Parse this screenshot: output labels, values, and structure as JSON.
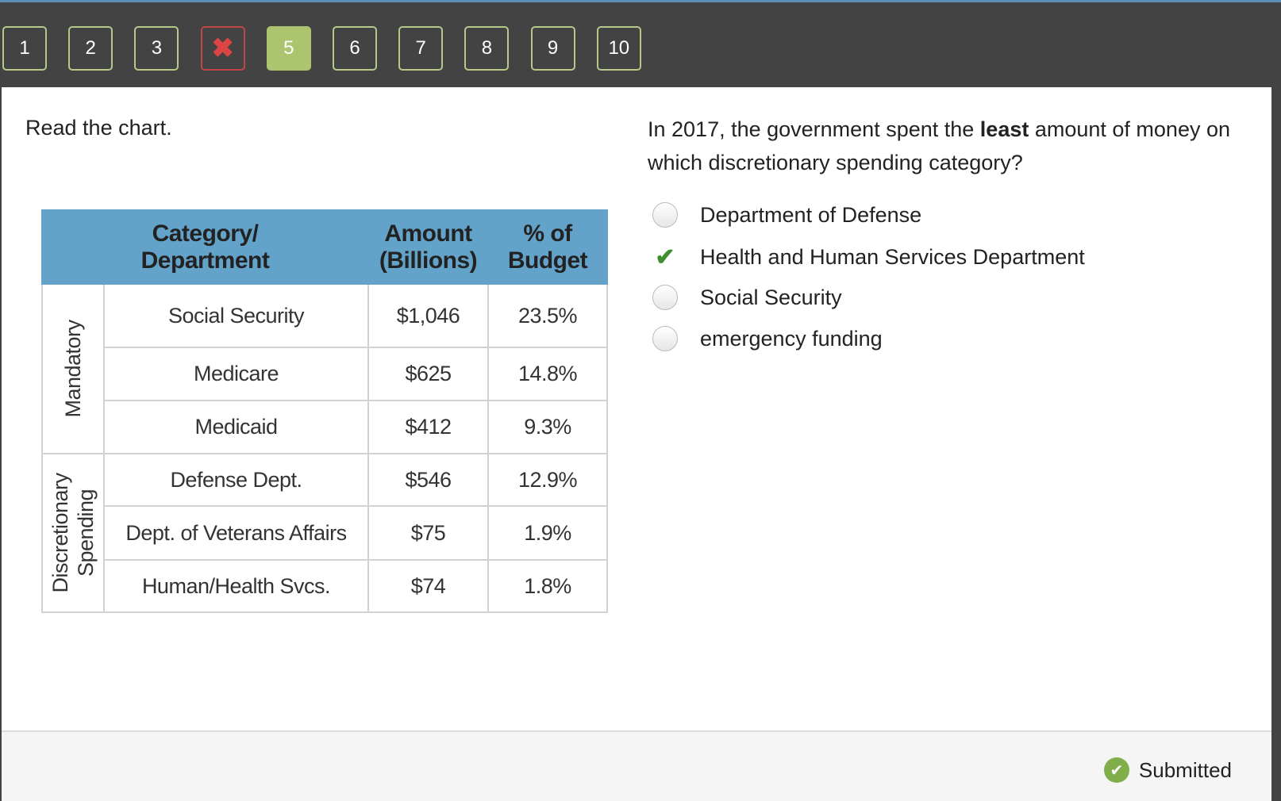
{
  "nav": {
    "questions": [
      {
        "label": "1",
        "state": "answered"
      },
      {
        "label": "2",
        "state": "answered"
      },
      {
        "label": "3",
        "state": "answered"
      },
      {
        "label": "✖",
        "state": "wrong"
      },
      {
        "label": "5",
        "state": "current"
      },
      {
        "label": "6",
        "state": "answered"
      },
      {
        "label": "7",
        "state": "answered"
      },
      {
        "label": "8",
        "state": "answered"
      },
      {
        "label": "9",
        "state": "answered"
      },
      {
        "label": "10",
        "state": "answered"
      }
    ]
  },
  "prompt": "Read the chart.",
  "question": {
    "before": "In 2017, the government spent the ",
    "bold": "least",
    "after": " amount of money on which discretionary spending category?"
  },
  "options": [
    {
      "label": "Department of Defense",
      "selected": false
    },
    {
      "label": "Health and Human Services Department",
      "selected": true
    },
    {
      "label": "Social Security",
      "selected": false
    },
    {
      "label": "emergency funding",
      "selected": false
    }
  ],
  "table": {
    "headers": [
      "Category/\nDepartment",
      "Amount\n(Billions)",
      "% of\nBudget"
    ],
    "groups": [
      {
        "label": "Mandatory",
        "rows": [
          [
            "Social Security",
            "$1,046",
            "23.5%"
          ],
          [
            "Medicare",
            "$625",
            "14.8%"
          ],
          [
            "Medicaid",
            "$412",
            "9.3%"
          ]
        ]
      },
      {
        "label": "Discretionary\nSpending",
        "rows": [
          [
            "Defense Dept.",
            "$546",
            "12.9%"
          ],
          [
            "Dept. of Veterans Affairs",
            "$75",
            "1.9%"
          ],
          [
            "Human/Health Svcs.",
            "$74",
            "1.8%"
          ]
        ]
      }
    ]
  },
  "status": "Submitted",
  "colors": {
    "header": "#63a3c9",
    "current": "#adc46e",
    "wrong": "#c04545",
    "check": "#3f8f2f"
  }
}
